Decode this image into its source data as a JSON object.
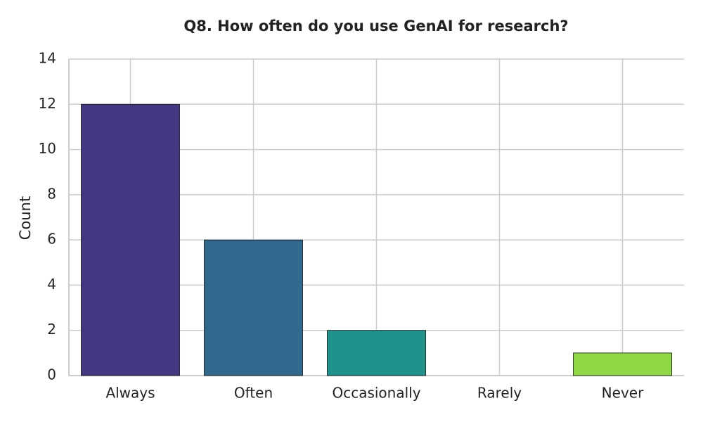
{
  "chart_data": {
    "type": "bar",
    "title": "Q8. How often do you use GenAI for research?",
    "y_label": "Count",
    "categories": [
      "Always",
      "Often",
      "Occasionally",
      "Rarely",
      "Never"
    ],
    "values": [
      12,
      6,
      2,
      0,
      1
    ],
    "colors": [
      "#453882",
      "#31688e",
      "#21918c",
      "#35b779",
      "#8fd744"
    ],
    "ylim": [
      0,
      14
    ],
    "yticks": [
      0,
      2,
      4,
      6,
      8,
      10,
      12,
      14
    ],
    "grid": true
  }
}
